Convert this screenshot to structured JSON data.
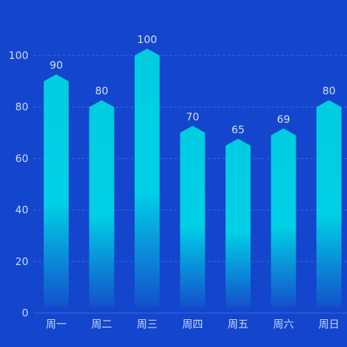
{
  "colors": {
    "background": "#1346cc",
    "bar_top": "#00cce0",
    "bar_mid": "#00d0e6",
    "bar_bottom": "#1450cc",
    "grid": "#3d6bdb",
    "label": "#c9d8ff"
  },
  "chart_data": {
    "type": "bar",
    "categories": [
      "周一",
      "周二",
      "周三",
      "周四",
      "周五",
      "周六",
      "周日"
    ],
    "values": [
      90,
      80,
      100,
      70,
      65,
      69,
      80
    ],
    "ylim": [
      0,
      100
    ],
    "yticks": [
      "0",
      "20",
      "40",
      "60",
      "80",
      "100"
    ],
    "title": "",
    "xlabel": "",
    "ylabel": "",
    "grid": true,
    "bar_shape": "rounded-rect with pointed top"
  }
}
